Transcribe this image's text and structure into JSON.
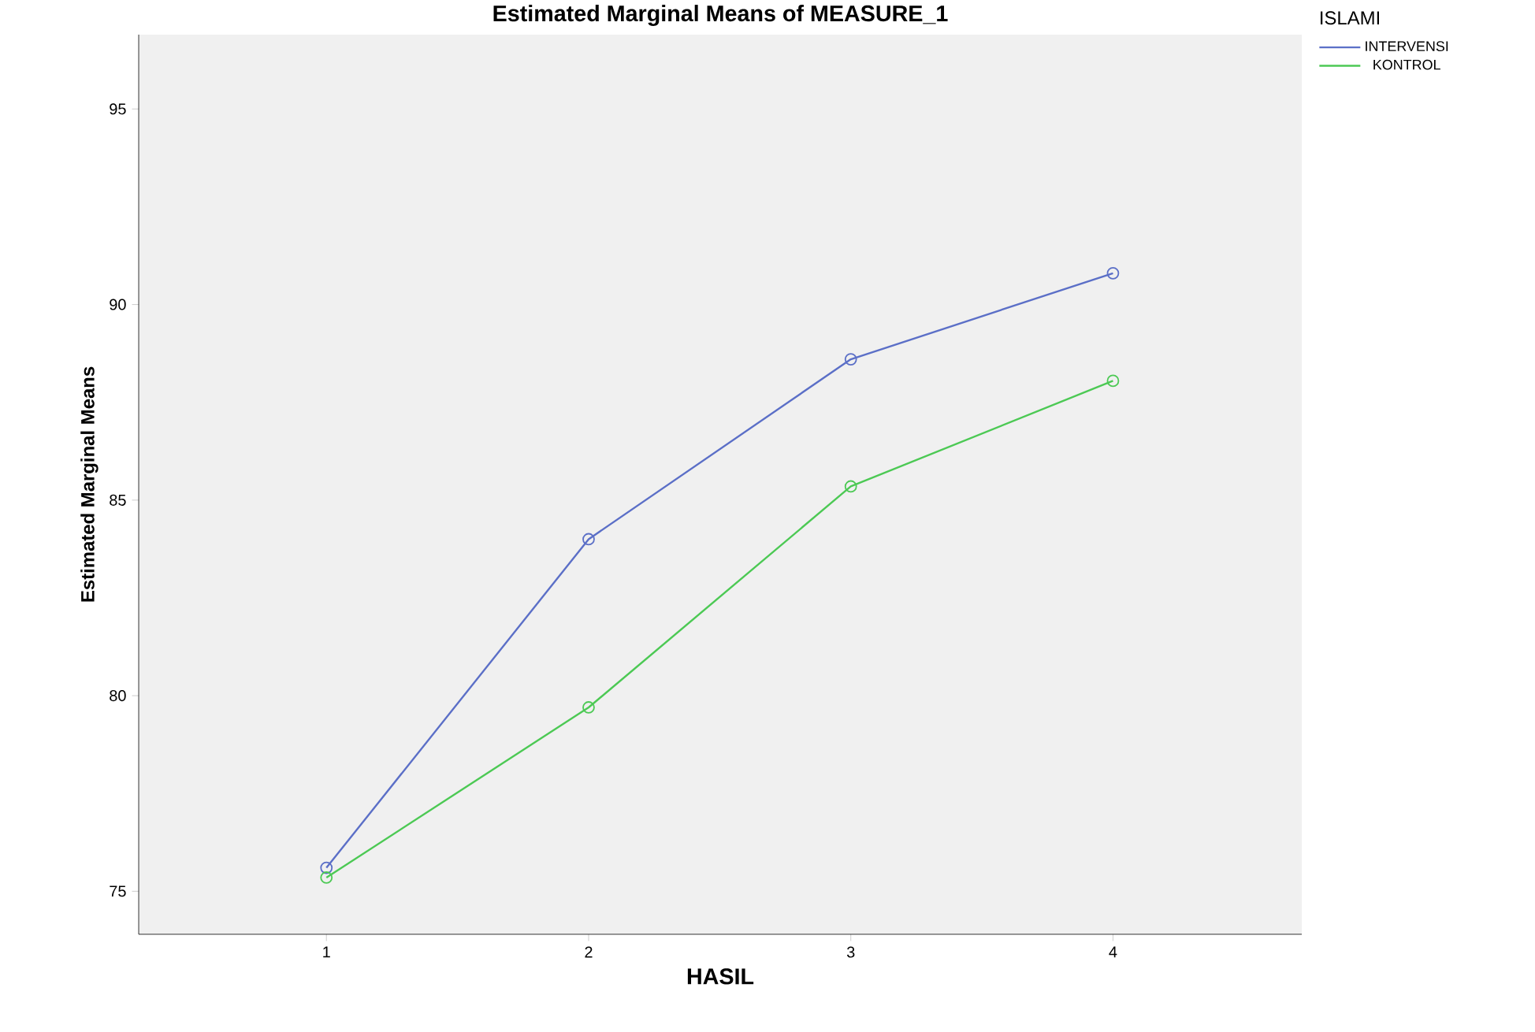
{
  "chart_data": {
    "type": "line",
    "title": "Estimated Marginal Means of MEASURE_1",
    "xlabel": "HASIL",
    "ylabel": "Estimated Marginal Means",
    "legend_title": "ISLAMI",
    "categories": [
      "1",
      "2",
      "3",
      "4"
    ],
    "series": [
      {
        "name": "INTERVENSI",
        "color": "#5b6fc7",
        "values": [
          75.6,
          84.0,
          88.6,
          90.8
        ]
      },
      {
        "name": "KONTROL",
        "color": "#4cc954",
        "values": [
          75.35,
          79.7,
          85.35,
          88.05
        ]
      }
    ],
    "ylim": [
      73.9,
      96.9
    ],
    "yticks": [
      75,
      80,
      85,
      90,
      95
    ],
    "marker": "circle",
    "legend": "top right",
    "grid": false
  }
}
